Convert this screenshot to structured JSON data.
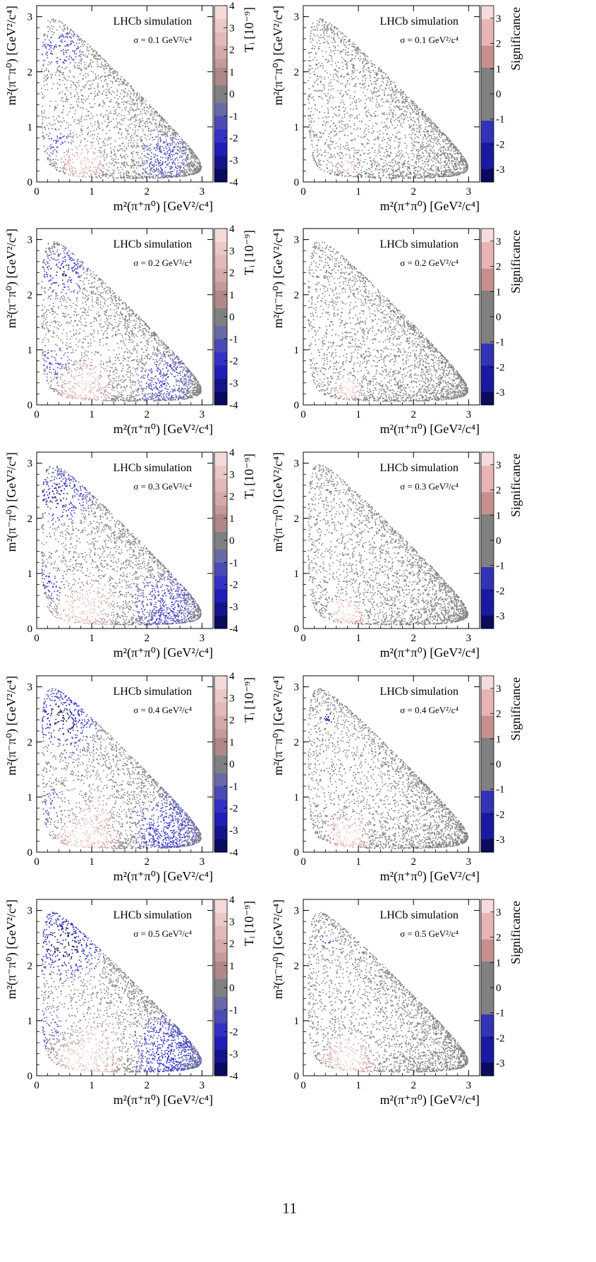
{
  "page_number": "11",
  "colors": {
    "gray": "#808080",
    "blue_dark": "#0b0b6e",
    "blue_mid": "#2a2ab8",
    "blue_light": "#5a5ab0",
    "pink_light": "#f3d7d7",
    "pink_mid": "#e4a8a8",
    "pink_dark": "#c98585"
  },
  "chart_data": [
    {
      "type": "scatter",
      "panel_label": "LHCb simulation",
      "sigma_label": "σ = 0.1 GeV²/c⁴",
      "sigma": 0.1,
      "kind": "Ti",
      "xlabel": "m²(π⁺π⁰) [GeV²/c⁴]",
      "ylabel": "m²(π⁻π⁰) [GeV²/c⁴]",
      "xlim": [
        0,
        3.2
      ],
      "ylim": [
        0,
        3.2
      ],
      "xticks": [
        "0",
        "1",
        "2",
        "3"
      ],
      "yticks": [
        "0",
        "1",
        "2",
        "3"
      ],
      "colorbar_label": "Tᵢ [10⁻⁹]",
      "colorbar_ticks": [
        "-4",
        "-3",
        "-2",
        "-1",
        "0",
        "1",
        "2",
        "3",
        "4"
      ],
      "colorbar_range": [
        -4,
        4
      ]
    },
    {
      "type": "scatter",
      "panel_label": "LHCb simulation",
      "sigma_label": "σ = 0.1 GeV²/c⁴",
      "sigma": 0.1,
      "kind": "sig",
      "xlabel": "m²(π⁺π⁰) [GeV²/c⁴]",
      "ylabel": "m²(π⁻π⁰) [GeV²/c⁴]",
      "xlim": [
        0,
        3.2
      ],
      "ylim": [
        0,
        3.2
      ],
      "xticks": [
        "0",
        "1",
        "2",
        "3"
      ],
      "yticks": [
        "0",
        "1",
        "2",
        "3"
      ],
      "colorbar_label": "Significance",
      "colorbar_ticks": [
        "-3",
        "-2",
        "-1",
        "0",
        "1",
        "2",
        "3"
      ],
      "colorbar_range": [
        -3.5,
        3.5
      ]
    },
    {
      "type": "scatter",
      "panel_label": "LHCb simulation",
      "sigma_label": "σ = 0.2 GeV²/c⁴",
      "sigma": 0.2,
      "kind": "Ti",
      "xlabel": "m²(π⁺π⁰) [GeV²/c⁴]",
      "ylabel": "m²(π⁻π⁰) [GeV²/c⁴]",
      "xlim": [
        0,
        3.2
      ],
      "ylim": [
        0,
        3.2
      ],
      "xticks": [
        "0",
        "1",
        "2",
        "3"
      ],
      "yticks": [
        "0",
        "1",
        "2",
        "3"
      ],
      "colorbar_label": "Tᵢ [10⁻⁹]",
      "colorbar_ticks": [
        "-4",
        "-3",
        "-2",
        "-1",
        "0",
        "1",
        "2",
        "3",
        "4"
      ],
      "colorbar_range": [
        -4,
        4
      ]
    },
    {
      "type": "scatter",
      "panel_label": "LHCb simulation",
      "sigma_label": "σ = 0.2 GeV²/c⁴",
      "sigma": 0.2,
      "kind": "sig",
      "xlabel": "m²(π⁺π⁰) [GeV²/c⁴]",
      "ylabel": "m²(π⁻π⁰) [GeV²/c⁴]",
      "xlim": [
        0,
        3.2
      ],
      "ylim": [
        0,
        3.2
      ],
      "xticks": [
        "0",
        "1",
        "2",
        "3"
      ],
      "yticks": [
        "0",
        "1",
        "2",
        "3"
      ],
      "colorbar_label": "Significance",
      "colorbar_ticks": [
        "-3",
        "-2",
        "-1",
        "0",
        "1",
        "2",
        "3"
      ],
      "colorbar_range": [
        -3.5,
        3.5
      ]
    },
    {
      "type": "scatter",
      "panel_label": "LHCb simulation",
      "sigma_label": "σ = 0.3 GeV²/c⁴",
      "sigma": 0.3,
      "kind": "Ti",
      "xlabel": "m²(π⁺π⁰) [GeV²/c⁴]",
      "ylabel": "m²(π⁻π⁰) [GeV²/c⁴]",
      "xlim": [
        0,
        3.2
      ],
      "ylim": [
        0,
        3.2
      ],
      "xticks": [
        "0",
        "1",
        "2",
        "3"
      ],
      "yticks": [
        "0",
        "1",
        "2",
        "3"
      ],
      "colorbar_label": "Tᵢ [10⁻⁹]",
      "colorbar_ticks": [
        "-4",
        "-3",
        "-2",
        "-1",
        "0",
        "1",
        "2",
        "3",
        "4"
      ],
      "colorbar_range": [
        -4,
        4
      ]
    },
    {
      "type": "scatter",
      "panel_label": "LHCb simulation",
      "sigma_label": "σ = 0.3 GeV²/c⁴",
      "sigma": 0.3,
      "kind": "sig",
      "xlabel": "m²(π⁺π⁰) [GeV²/c⁴]",
      "ylabel": "m²(π⁻π⁰) [GeV²/c⁴]",
      "xlim": [
        0,
        3.2
      ],
      "ylim": [
        0,
        3.2
      ],
      "xticks": [
        "0",
        "1",
        "2",
        "3"
      ],
      "yticks": [
        "0",
        "1",
        "2",
        "3"
      ],
      "colorbar_label": "Significance",
      "colorbar_ticks": [
        "-3",
        "-2",
        "-1",
        "0",
        "1",
        "2",
        "3"
      ],
      "colorbar_range": [
        -3.5,
        3.5
      ]
    },
    {
      "type": "scatter",
      "panel_label": "LHCb simulation",
      "sigma_label": "σ = 0.4 GeV²/c⁴",
      "sigma": 0.4,
      "kind": "Ti",
      "xlabel": "m²(π⁺π⁰) [GeV²/c⁴]",
      "ylabel": "m²(π⁻π⁰) [GeV²/c⁴]",
      "xlim": [
        0,
        3.2
      ],
      "ylim": [
        0,
        3.2
      ],
      "xticks": [
        "0",
        "1",
        "2",
        "3"
      ],
      "yticks": [
        "0",
        "1",
        "2",
        "3"
      ],
      "colorbar_label": "Tᵢ [10⁻⁹]",
      "colorbar_ticks": [
        "-4",
        "-3",
        "-2",
        "-1",
        "0",
        "1",
        "2",
        "3",
        "4"
      ],
      "colorbar_range": [
        -4,
        4
      ]
    },
    {
      "type": "scatter",
      "panel_label": "LHCb simulation",
      "sigma_label": "σ = 0.4 GeV²/c⁴",
      "sigma": 0.4,
      "kind": "sig",
      "xlabel": "m²(π⁺π⁰) [GeV²/c⁴]",
      "ylabel": "m²(π⁻π⁰) [GeV²/c⁴]",
      "xlim": [
        0,
        3.2
      ],
      "ylim": [
        0,
        3.2
      ],
      "xticks": [
        "0",
        "1",
        "2",
        "3"
      ],
      "yticks": [
        "0",
        "1",
        "2",
        "3"
      ],
      "colorbar_label": "Significance",
      "colorbar_ticks": [
        "-3",
        "-2",
        "-1",
        "0",
        "1",
        "2",
        "3"
      ],
      "colorbar_range": [
        -3.5,
        3.5
      ]
    },
    {
      "type": "scatter",
      "panel_label": "LHCb simulation",
      "sigma_label": "σ = 0.5 GeV²/c⁴",
      "sigma": 0.5,
      "kind": "Ti",
      "xlabel": "m²(π⁺π⁰) [GeV²/c⁴]",
      "ylabel": "m²(π⁻π⁰) [GeV²/c⁴]",
      "xlim": [
        0,
        3.2
      ],
      "ylim": [
        0,
        3.2
      ],
      "xticks": [
        "0",
        "1",
        "2",
        "3"
      ],
      "yticks": [
        "0",
        "1",
        "2",
        "3"
      ],
      "colorbar_label": "Tᵢ [10⁻⁹]",
      "colorbar_ticks": [
        "-4",
        "-3",
        "-2",
        "-1",
        "0",
        "1",
        "2",
        "3",
        "4"
      ],
      "colorbar_range": [
        -4,
        4
      ]
    },
    {
      "type": "scatter",
      "panel_label": "LHCb simulation",
      "sigma_label": "σ = 0.5 GeV²/c⁴",
      "sigma": 0.5,
      "kind": "sig",
      "xlabel": "m²(π⁺π⁰) [GeV²/c⁴]",
      "ylabel": "m²(π⁻π⁰) [GeV²/c⁴]",
      "xlim": [
        0,
        3.2
      ],
      "ylim": [
        0,
        3.2
      ],
      "xticks": [
        "0",
        "1",
        "2",
        "3"
      ],
      "yticks": [
        "0",
        "1",
        "2",
        "3"
      ],
      "colorbar_label": "Significance",
      "colorbar_ticks": [
        "-3",
        "-2",
        "-1",
        "0",
        "1",
        "2",
        "3"
      ],
      "colorbar_range": [
        -3.5,
        3.5
      ]
    }
  ]
}
